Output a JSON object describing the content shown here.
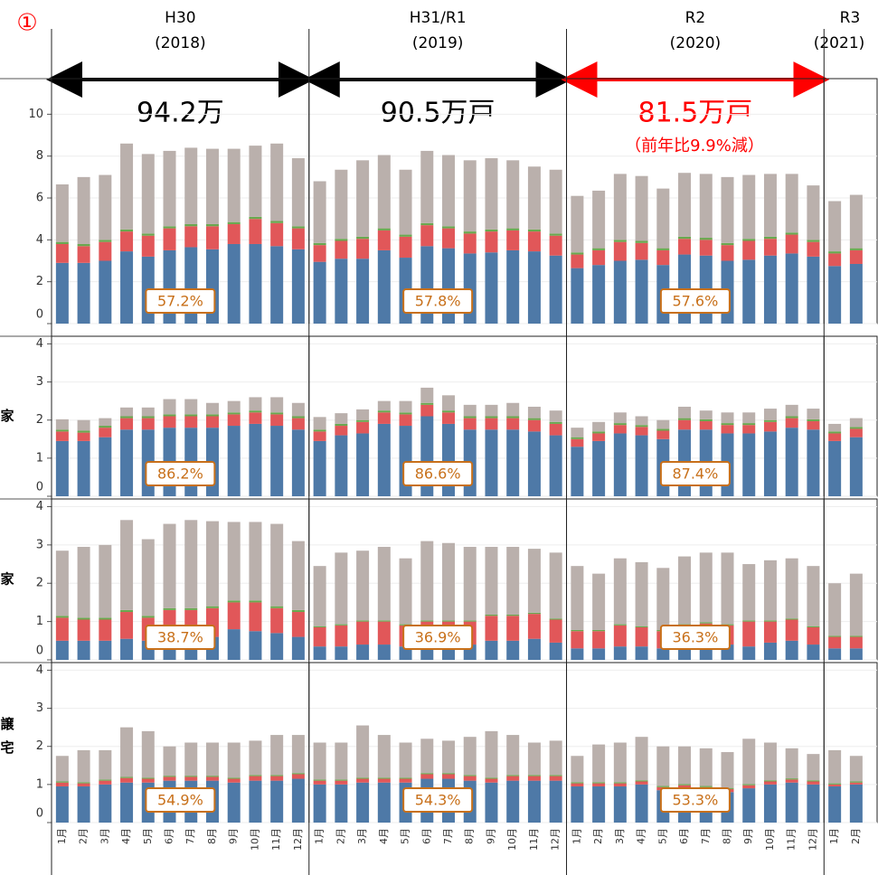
{
  "header": {
    "marker": "①",
    "note": "（前年比9.9%減）",
    "periods": [
      {
        "era": "H30",
        "year": "(2018)",
        "total": "94.2万",
        "color": "#000000"
      },
      {
        "era": "H31/R1",
        "year": "(2019)",
        "total": "90.5万戸",
        "color": "#000000"
      },
      {
        "era": "R2",
        "year": "(2020)",
        "total": "81.5万戸",
        "color": "#ff0000"
      },
      {
        "era": "R3",
        "year": "(2021)"
      }
    ]
  },
  "chart_data": [
    {
      "type": "bar",
      "stacked": true,
      "grid": true,
      "ylim": [
        0,
        11.7
      ],
      "yticks": [
        0,
        2,
        4,
        6,
        8,
        10
      ],
      "annotations": [
        "57.2%",
        "57.8%",
        "57.6%"
      ],
      "series": [
        {
          "color": "#4e79a7",
          "values": [
            2.9,
            2.9,
            3.0,
            3.45,
            3.2,
            3.5,
            3.65,
            3.55,
            3.8,
            3.8,
            3.7,
            3.55,
            2.95,
            3.1,
            3.1,
            3.5,
            3.15,
            3.7,
            3.6,
            3.35,
            3.4,
            3.5,
            3.45,
            3.25,
            2.65,
            2.8,
            3.0,
            3.05,
            2.8,
            3.3,
            3.25,
            3.0,
            3.05,
            3.25,
            3.35,
            3.2,
            2.75,
            2.85
          ]
        },
        {
          "color": "#e15759",
          "values": [
            0.9,
            0.8,
            0.9,
            0.95,
            1.0,
            1.05,
            1.0,
            1.1,
            0.95,
            1.2,
            1.1,
            1.0,
            0.8,
            0.85,
            0.95,
            0.95,
            1.0,
            1.0,
            0.95,
            0.95,
            1.0,
            0.95,
            0.95,
            0.95,
            0.65,
            0.7,
            0.9,
            0.8,
            0.7,
            0.75,
            0.75,
            0.75,
            0.9,
            0.8,
            0.9,
            0.7,
            0.6,
            0.65
          ]
        },
        {
          "color": "#6aa84f",
          "values": [
            0.1,
            0.1,
            0.1,
            0.1,
            0.1,
            0.1,
            0.1,
            0.1,
            0.1,
            0.1,
            0.1,
            0.1,
            0.1,
            0.1,
            0.1,
            0.1,
            0.1,
            0.1,
            0.1,
            0.1,
            0.1,
            0.1,
            0.1,
            0.1,
            0.1,
            0.1,
            0.1,
            0.1,
            0.1,
            0.1,
            0.1,
            0.1,
            0.1,
            0.1,
            0.1,
            0.1,
            0.1,
            0.1
          ]
        },
        {
          "color": "#bab0ac",
          "values": [
            2.75,
            3.2,
            3.1,
            4.1,
            3.8,
            3.6,
            3.65,
            3.6,
            3.5,
            3.4,
            3.7,
            3.25,
            2.95,
            3.3,
            3.65,
            3.5,
            3.1,
            3.45,
            3.4,
            3.4,
            3.4,
            3.25,
            3.0,
            3.05,
            2.7,
            2.75,
            3.15,
            3.1,
            2.85,
            3.05,
            3.05,
            3.15,
            3.05,
            3.0,
            2.8,
            2.6,
            2.4,
            2.55
          ]
        }
      ]
    },
    {
      "type": "bar",
      "stacked": true,
      "grid": true,
      "ylim": [
        0,
        4.2
      ],
      "yticks": [
        0,
        1,
        2,
        3,
        4
      ],
      "row_label": "家",
      "annotations": [
        "86.2%",
        "86.6%",
        "87.4%"
      ],
      "series": [
        {
          "color": "#4e79a7",
          "values": [
            1.45,
            1.45,
            1.55,
            1.75,
            1.75,
            1.8,
            1.8,
            1.8,
            1.85,
            1.9,
            1.85,
            1.75,
            1.45,
            1.6,
            1.65,
            1.9,
            1.85,
            2.1,
            1.9,
            1.75,
            1.75,
            1.75,
            1.7,
            1.6,
            1.3,
            1.45,
            1.65,
            1.6,
            1.5,
            1.75,
            1.75,
            1.65,
            1.65,
            1.7,
            1.8,
            1.75,
            1.45,
            1.55
          ]
        },
        {
          "color": "#e15759",
          "values": [
            0.25,
            0.22,
            0.25,
            0.3,
            0.3,
            0.3,
            0.3,
            0.3,
            0.3,
            0.3,
            0.3,
            0.3,
            0.25,
            0.25,
            0.3,
            0.3,
            0.3,
            0.3,
            0.3,
            0.3,
            0.3,
            0.3,
            0.3,
            0.3,
            0.2,
            0.2,
            0.22,
            0.22,
            0.22,
            0.25,
            0.22,
            0.22,
            0.22,
            0.25,
            0.25,
            0.22,
            0.2,
            0.22
          ]
        },
        {
          "color": "#6aa84f",
          "values": [
            0.05,
            0.05,
            0.05,
            0.05,
            0.05,
            0.05,
            0.05,
            0.05,
            0.05,
            0.05,
            0.05,
            0.05,
            0.05,
            0.05,
            0.05,
            0.05,
            0.05,
            0.05,
            0.05,
            0.05,
            0.05,
            0.05,
            0.05,
            0.05,
            0.05,
            0.05,
            0.05,
            0.05,
            0.05,
            0.05,
            0.05,
            0.05,
            0.05,
            0.05,
            0.05,
            0.05,
            0.05,
            0.05
          ]
        },
        {
          "color": "#bab0ac",
          "values": [
            0.27,
            0.28,
            0.2,
            0.23,
            0.23,
            0.4,
            0.4,
            0.3,
            0.3,
            0.35,
            0.4,
            0.35,
            0.33,
            0.28,
            0.28,
            0.25,
            0.3,
            0.4,
            0.4,
            0.3,
            0.3,
            0.35,
            0.3,
            0.3,
            0.25,
            0.25,
            0.28,
            0.23,
            0.23,
            0.3,
            0.23,
            0.28,
            0.28,
            0.3,
            0.3,
            0.28,
            0.2,
            0.23
          ]
        }
      ]
    },
    {
      "type": "bar",
      "stacked": true,
      "grid": true,
      "ylim": [
        0,
        4.2
      ],
      "yticks": [
        0,
        1,
        2,
        3,
        4
      ],
      "row_label": "家",
      "annotations": [
        "38.7%",
        "36.9%",
        "36.3%"
      ],
      "series": [
        {
          "color": "#4e79a7",
          "values": [
            0.5,
            0.5,
            0.5,
            0.55,
            0.5,
            0.6,
            0.6,
            0.6,
            0.8,
            0.75,
            0.7,
            0.6,
            0.35,
            0.35,
            0.4,
            0.4,
            0.35,
            0.45,
            0.4,
            0.4,
            0.5,
            0.5,
            0.55,
            0.45,
            0.3,
            0.3,
            0.35,
            0.35,
            0.3,
            0.4,
            0.4,
            0.4,
            0.35,
            0.45,
            0.5,
            0.4,
            0.3,
            0.3
          ]
        },
        {
          "color": "#e15759",
          "values": [
            0.6,
            0.55,
            0.55,
            0.7,
            0.6,
            0.7,
            0.7,
            0.75,
            0.7,
            0.75,
            0.65,
            0.65,
            0.5,
            0.55,
            0.6,
            0.6,
            0.55,
            0.55,
            0.6,
            0.6,
            0.65,
            0.65,
            0.65,
            0.6,
            0.45,
            0.45,
            0.55,
            0.5,
            0.45,
            0.5,
            0.55,
            0.5,
            0.65,
            0.55,
            0.55,
            0.45,
            0.3,
            0.3
          ]
        },
        {
          "color": "#6aa84f",
          "values": [
            0.05,
            0.05,
            0.05,
            0.05,
            0.05,
            0.05,
            0.05,
            0.05,
            0.05,
            0.05,
            0.05,
            0.05,
            0.03,
            0.03,
            0.03,
            0.03,
            0.03,
            0.03,
            0.03,
            0.03,
            0.03,
            0.03,
            0.03,
            0.03,
            0.03,
            0.03,
            0.03,
            0.03,
            0.03,
            0.03,
            0.03,
            0.03,
            0.03,
            0.03,
            0.03,
            0.03,
            0.03,
            0.03
          ]
        },
        {
          "color": "#bab0ac",
          "values": [
            1.7,
            1.85,
            1.9,
            2.35,
            2.0,
            2.2,
            2.3,
            2.22,
            2.05,
            2.05,
            2.15,
            1.8,
            1.57,
            1.87,
            1.82,
            1.92,
            1.72,
            2.07,
            2.02,
            1.92,
            1.77,
            1.77,
            1.67,
            1.72,
            1.67,
            1.47,
            1.72,
            1.67,
            1.62,
            1.77,
            1.82,
            1.87,
            1.47,
            1.57,
            1.57,
            1.57,
            1.37,
            1.62
          ]
        }
      ]
    },
    {
      "type": "bar",
      "stacked": true,
      "grid": true,
      "ylim": [
        0,
        4.2
      ],
      "yticks": [
        0,
        1,
        2,
        3,
        4
      ],
      "row_label": [
        "譲",
        "宅"
      ],
      "annotations": [
        "54.9%",
        "54.3%",
        "53.3%"
      ],
      "categories": [
        "1月",
        "2月",
        "3月",
        "4月",
        "5月",
        "6月",
        "7月",
        "8月",
        "9月",
        "10月",
        "11月",
        "12月",
        "1月",
        "2月",
        "3月",
        "4月",
        "5月",
        "6月",
        "7月",
        "8月",
        "9月",
        "10月",
        "11月",
        "12月",
        "1月",
        "2月",
        "3月",
        "4月",
        "5月",
        "6月",
        "7月",
        "8月",
        "9月",
        "10月",
        "11月",
        "12月",
        "1月",
        "2月"
      ],
      "series": [
        {
          "color": "#4e79a7",
          "values": [
            0.95,
            0.95,
            1.0,
            1.05,
            1.05,
            1.1,
            1.1,
            1.1,
            1.05,
            1.1,
            1.1,
            1.15,
            1.0,
            1.0,
            1.05,
            1.05,
            1.05,
            1.15,
            1.15,
            1.1,
            1.05,
            1.1,
            1.1,
            1.1,
            0.95,
            0.95,
            0.95,
            1.0,
            0.85,
            0.9,
            0.85,
            0.8,
            0.9,
            1.0,
            1.05,
            1.0,
            0.95,
            1.0
          ]
        },
        {
          "color": "#e15759",
          "values": [
            0.1,
            0.08,
            0.1,
            0.12,
            0.1,
            0.1,
            0.1,
            0.1,
            0.1,
            0.12,
            0.12,
            0.12,
            0.1,
            0.1,
            0.1,
            0.1,
            0.1,
            0.12,
            0.12,
            0.12,
            0.1,
            0.12,
            0.12,
            0.12,
            0.08,
            0.08,
            0.08,
            0.08,
            0.08,
            0.08,
            0.08,
            0.08,
            0.08,
            0.08,
            0.08,
            0.08,
            0.05,
            0.05
          ]
        },
        {
          "color": "#6aa84f",
          "values": [
            0.03,
            0.03,
            0.03,
            0.03,
            0.03,
            0.03,
            0.03,
            0.03,
            0.03,
            0.03,
            0.03,
            0.03,
            0.03,
            0.03,
            0.03,
            0.03,
            0.03,
            0.03,
            0.03,
            0.03,
            0.03,
            0.03,
            0.03,
            0.03,
            0.03,
            0.03,
            0.03,
            0.03,
            0.03,
            0.03,
            0.03,
            0.03,
            0.03,
            0.03,
            0.03,
            0.03,
            0.03,
            0.03
          ]
        },
        {
          "color": "#bab0ac",
          "values": [
            0.67,
            0.84,
            0.77,
            1.3,
            1.22,
            0.77,
            0.87,
            0.87,
            0.92,
            0.9,
            1.05,
            1.0,
            0.97,
            0.97,
            1.37,
            1.12,
            0.92,
            0.9,
            0.85,
            1.0,
            1.22,
            1.05,
            0.85,
            0.9,
            0.69,
            0.99,
            1.04,
            1.14,
            1.04,
            0.99,
            0.99,
            0.94,
            1.19,
            0.99,
            0.79,
            0.69,
            0.87,
            0.67
          ]
        }
      ]
    }
  ]
}
